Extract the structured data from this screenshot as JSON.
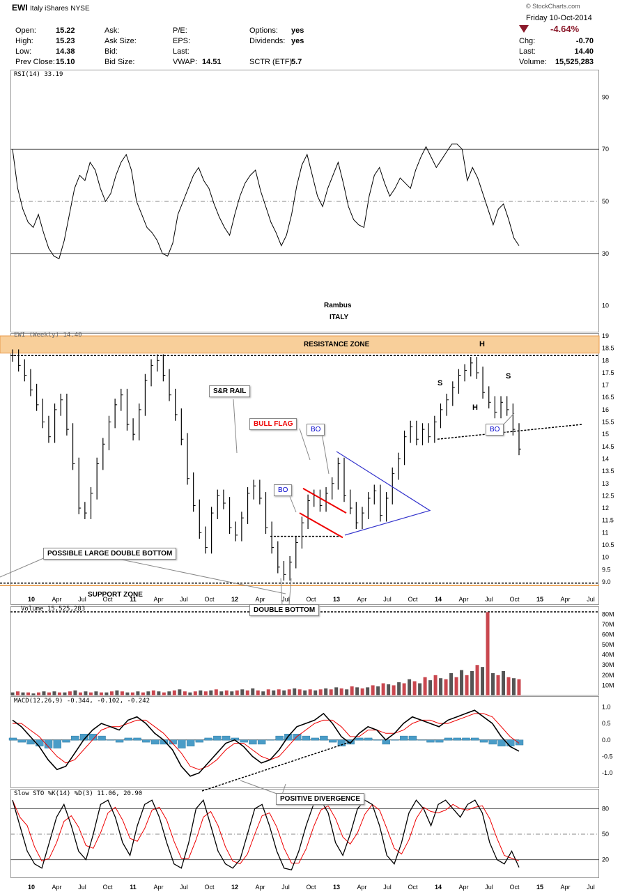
{
  "header": {
    "symbol": "EWI",
    "name": "Italy iShares",
    "exchange": "NYSE",
    "watermark": "© StockCharts.com",
    "date": "Friday 10-Oct-2014",
    "change_pct": "-4.64%",
    "fields": [
      {
        "label": "Open:",
        "value": "15.22"
      },
      {
        "label": "High:",
        "value": "15.23"
      },
      {
        "label": "Low:",
        "value": "14.38"
      },
      {
        "label": "Prev Close:",
        "value": "15.10"
      }
    ],
    "fields2": [
      {
        "label": "Ask:",
        "value": ""
      },
      {
        "label": "Ask Size:",
        "value": ""
      },
      {
        "label": "Bid:",
        "value": ""
      },
      {
        "label": "Bid Size:",
        "value": ""
      }
    ],
    "fields3": [
      {
        "label": "P/E:",
        "value": ""
      },
      {
        "label": "EPS:",
        "value": ""
      },
      {
        "label": "Last:",
        "value": ""
      },
      {
        "label": "VWAP:",
        "value": "14.51"
      }
    ],
    "fields4": [
      {
        "label": "Options:",
        "value": "yes"
      },
      {
        "label": "Dividends:",
        "value": "yes"
      },
      {
        "label": "",
        "value": ""
      },
      {
        "label": "SCTR (ETF):",
        "value": "5.7"
      }
    ],
    "fields5": [
      {
        "label": "Chg:",
        "value": "-0.70"
      },
      {
        "label": "Last:",
        "value": "14.40"
      },
      {
        "label": "Volume:",
        "value": "15,525,283"
      }
    ]
  },
  "chart_data": {
    "type": "line",
    "x_labels": [
      "10",
      "Apr",
      "Jul",
      "Oct",
      "11",
      "Apr",
      "Jul",
      "Oct",
      "12",
      "Apr",
      "Jul",
      "Oct",
      "13",
      "Apr",
      "Jul",
      "Oct",
      "14",
      "Apr",
      "Jul",
      "Oct",
      "15",
      "Apr",
      "Jul"
    ],
    "rsi": {
      "label": "RSI(14) 33.19",
      "ticks": [
        90,
        70,
        50,
        30,
        10
      ],
      "ylim": [
        0,
        100
      ],
      "values": [
        70,
        55,
        47,
        42,
        40,
        45,
        38,
        32,
        29,
        28,
        35,
        45,
        55,
        60,
        58,
        65,
        62,
        55,
        50,
        53,
        60,
        65,
        68,
        62,
        50,
        45,
        40,
        38,
        35,
        30,
        29,
        34,
        45,
        50,
        55,
        60,
        63,
        58,
        55,
        49,
        44,
        40,
        37,
        45,
        52,
        57,
        60,
        62,
        54,
        48,
        42,
        38,
        33,
        37,
        45,
        56,
        64,
        68,
        60,
        52,
        48,
        55,
        60,
        65,
        57,
        48,
        43,
        41,
        40,
        52,
        60,
        63,
        57,
        52,
        55,
        59,
        57,
        55,
        62,
        67,
        71,
        67,
        63,
        66,
        69,
        72,
        72,
        70,
        58,
        63,
        59,
        53,
        47,
        41,
        47,
        49,
        43,
        36,
        33
      ]
    },
    "price": {
      "label": "EWI (Weekly) 14.40",
      "ticks": [
        19.0,
        18.5,
        18.0,
        17.5,
        17.0,
        16.5,
        16.0,
        15.5,
        15.0,
        14.5,
        14.0,
        13.5,
        13.0,
        12.5,
        12.0,
        11.5,
        11.0,
        10.5,
        10.0,
        9.5,
        9.0
      ],
      "ylim": [
        8.8,
        19.0
      ],
      "values": [
        18.2,
        17.8,
        17.4,
        16.8,
        16.2,
        15.5,
        14.9,
        16.0,
        16.4,
        15.2,
        13.8,
        12.0,
        11.8,
        12.6,
        13.8,
        14.6,
        15.5,
        16.2,
        16.6,
        15.4,
        15.0,
        16.0,
        17.2,
        17.8,
        18.0,
        17.4,
        16.6,
        15.8,
        14.8,
        13.2,
        12.1,
        11.0,
        10.4,
        11.8,
        12.5,
        12.2,
        11.2,
        10.9,
        11.6,
        12.6,
        12.9,
        12.4,
        11.2,
        10.4,
        9.6,
        9.3,
        9.8,
        10.6,
        11.4,
        12.3,
        12.5,
        12.1,
        12.6,
        13.0,
        13.8,
        12.5,
        12.0,
        11.4,
        11.8,
        12.4,
        12.7,
        11.7,
        12.4,
        13.4,
        14.0,
        14.9,
        15.3,
        14.8,
        15.2,
        14.9,
        15.5,
        16.0,
        16.4,
        16.9,
        17.4,
        17.6,
        17.9,
        17.5,
        16.7,
        16.3,
        15.9,
        16.3,
        16.0,
        15.2,
        14.4
      ],
      "annotations": [
        "RESISTANCE ZONE",
        "SUPPORT ZONE",
        "S&R RAIL",
        "BULL FLAG",
        "BO",
        "BO",
        "BO",
        "POSSIBLE LARGE DOUBLE BOTTOM",
        "DOUBLE BOTTOM",
        "S",
        "H",
        "S",
        "H",
        "Rambus",
        "ITALY"
      ]
    },
    "volume": {
      "label": "Volume 15,525,283",
      "ticks": [
        "80M",
        "70M",
        "60M",
        "50M",
        "40M",
        "30M",
        "20M",
        "10M"
      ],
      "ylim": [
        0,
        85
      ],
      "values": [
        3,
        4,
        3,
        3,
        2,
        3,
        4,
        3,
        4,
        3,
        3,
        4,
        5,
        3,
        4,
        3,
        4,
        3,
        3,
        4,
        5,
        4,
        3,
        3,
        4,
        3,
        4,
        5,
        4,
        3,
        4,
        5,
        6,
        4,
        3,
        4,
        5,
        4,
        5,
        6,
        4,
        5,
        4,
        5,
        6,
        5,
        7,
        5,
        4,
        6,
        5,
        6,
        5,
        6,
        7,
        6,
        5,
        6,
        5,
        6,
        7,
        6,
        8,
        7,
        6,
        9,
        8,
        7,
        8,
        10,
        9,
        12,
        11,
        10,
        13,
        12,
        16,
        14,
        12,
        18,
        15,
        20,
        17,
        16,
        22,
        18,
        25,
        20,
        24,
        30,
        28,
        82,
        22,
        20,
        24,
        18,
        17,
        16
      ]
    },
    "macd": {
      "label": "MACD(12,26,9) -0.344, -0.102, -0.242",
      "ticks": [
        "1.0",
        "0.5",
        "0.0",
        "-0.5",
        "-1.0"
      ],
      "ylim": [
        -1.4,
        1.2
      ],
      "macd_values": [
        0.6,
        0.4,
        0.1,
        -0.2,
        -0.6,
        -0.9,
        -0.8,
        -0.4,
        0.0,
        0.3,
        0.5,
        0.4,
        0.3,
        0.6,
        0.7,
        0.5,
        0.2,
        0.0,
        -0.3,
        -0.8,
        -1.1,
        -1.0,
        -0.7,
        -0.4,
        -0.1,
        0.0,
        -0.2,
        -0.5,
        -0.7,
        -0.6,
        -0.3,
        0.1,
        0.4,
        0.5,
        0.6,
        0.8,
        0.5,
        0.1,
        -0.1,
        0.2,
        0.4,
        0.3,
        0.0,
        0.2,
        0.5,
        0.7,
        0.6,
        0.5,
        0.4,
        0.6,
        0.7,
        0.8,
        0.9,
        0.7,
        0.5,
        0.1,
        -0.2,
        -0.34
      ],
      "signal_values": [
        0.5,
        0.5,
        0.3,
        0.1,
        -0.2,
        -0.5,
        -0.7,
        -0.6,
        -0.3,
        0.0,
        0.3,
        0.4,
        0.4,
        0.5,
        0.6,
        0.6,
        0.4,
        0.2,
        -0.1,
        -0.4,
        -0.8,
        -0.9,
        -0.8,
        -0.6,
        -0.3,
        -0.1,
        -0.1,
        -0.3,
        -0.5,
        -0.6,
        -0.5,
        -0.2,
        0.1,
        0.3,
        0.5,
        0.6,
        0.6,
        0.4,
        0.1,
        0.1,
        0.3,
        0.3,
        0.2,
        0.2,
        0.3,
        0.5,
        0.6,
        0.6,
        0.5,
        0.5,
        0.6,
        0.7,
        0.8,
        0.8,
        0.7,
        0.4,
        0.1,
        -0.1
      ],
      "annotation": "POSITIVE DIVERGENCE"
    },
    "stoch": {
      "label": "Slow STO %K(14) %D(3) 11.06, 20.90",
      "ticks": [
        "80",
        "50",
        "20"
      ],
      "ylim": [
        0,
        100
      ],
      "values": [
        90,
        60,
        30,
        15,
        10,
        40,
        70,
        85,
        60,
        30,
        20,
        50,
        85,
        90,
        70,
        40,
        25,
        60,
        85,
        90,
        70,
        40,
        15,
        10,
        40,
        80,
        90,
        60,
        30,
        15,
        10,
        20,
        50,
        80,
        85,
        60,
        30,
        10,
        8,
        30,
        60,
        85,
        90,
        75,
        40,
        25,
        50,
        80,
        90,
        85,
        60,
        25,
        15,
        40,
        75,
        90,
        80,
        60,
        85,
        90,
        80,
        70,
        85,
        90,
        75,
        40,
        20,
        15,
        30,
        11
      ]
    }
  }
}
